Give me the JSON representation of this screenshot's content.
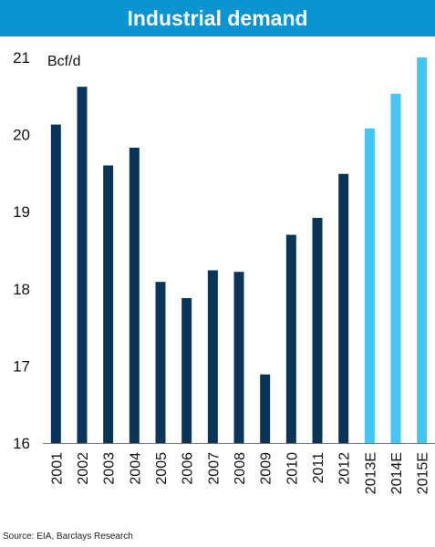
{
  "title": "Industrial demand",
  "source": "Source: EIA, Barclays Research",
  "colors": {
    "title_bg": "#0a94d2",
    "actual_bar": "#0b3558",
    "estimate_bar": "#44c6f4"
  },
  "chart_data": {
    "type": "bar",
    "title": "Industrial demand",
    "ylabel": "Bcf/d",
    "xlabel": "",
    "ylim": [
      16,
      21
    ],
    "yticks": [
      16,
      17,
      18,
      19,
      20,
      21
    ],
    "grid": false,
    "categories": [
      "2001",
      "2002",
      "2003",
      "2004",
      "2005",
      "2006",
      "2007",
      "2008",
      "2009",
      "2010",
      "2011",
      "2012",
      "2013E",
      "2014E",
      "2015E"
    ],
    "values": [
      20.13,
      20.62,
      19.6,
      19.83,
      18.09,
      17.88,
      18.24,
      18.22,
      16.89,
      18.7,
      18.92,
      19.49,
      20.08,
      20.53,
      21.0
    ],
    "estimate_flags": [
      false,
      false,
      false,
      false,
      false,
      false,
      false,
      false,
      false,
      false,
      false,
      false,
      true,
      true,
      true
    ]
  }
}
